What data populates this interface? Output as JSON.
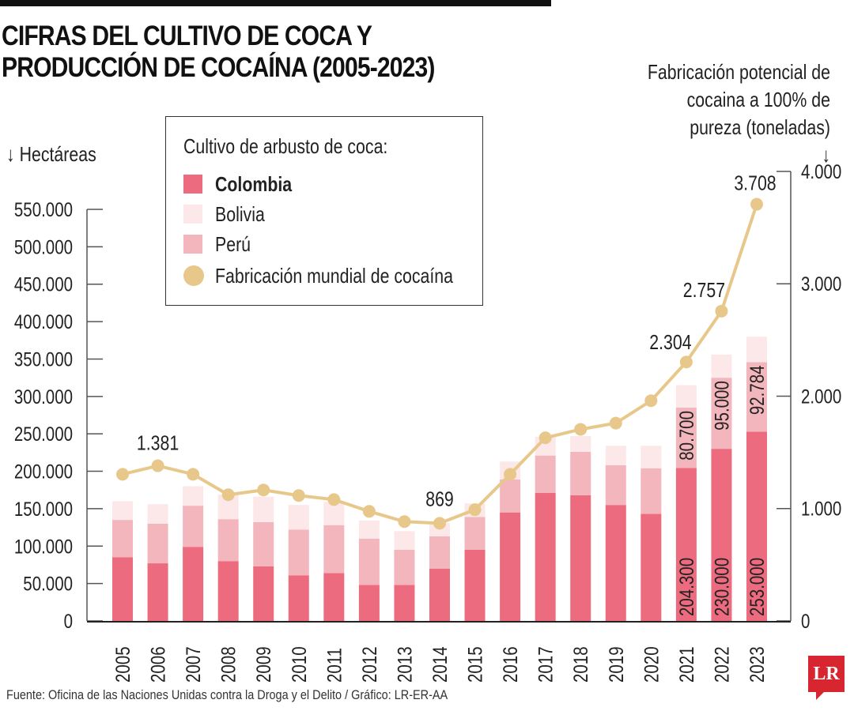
{
  "title_line1": "CIFRAS DEL CULTIVO DE COCA Y",
  "title_line2": "PRODUCCIÓN DE COCAÍNA (2005-2023)",
  "source": "Fuente: Oficina de las Naciones Unidas contra la Droga y el Delito / Gráfico: LR-ER-AA",
  "logo": "LR",
  "colors": {
    "colombia": "#ec6b7e",
    "bolivia": "#fce7e9",
    "peru": "#f2b6bc",
    "cocaine": "#e8c88a"
  },
  "chart_data": {
    "type": "bar",
    "stacked": true,
    "ylabel": "Hectáreas",
    "y2label": "Fabricación potencial de cocaina a 100% de pureza (toneladas)",
    "ylim": [
      0,
      550000
    ],
    "y2lim": [
      0,
      4000
    ],
    "yticks": [
      "0",
      "50.000",
      "100.000",
      "150.000",
      "200.000",
      "250.000",
      "300.000",
      "350.000",
      "400.000",
      "450.000",
      "500.000",
      "550.000"
    ],
    "y2ticks": [
      "0",
      "1.000",
      "2.000",
      "3.000",
      "4.000"
    ],
    "legend_title": "Cultivo de arbusto de coca:",
    "legend_placement": "top-left",
    "categories": [
      "2005",
      "2006",
      "2007",
      "2008",
      "2009",
      "2010",
      "2011",
      "2012",
      "2013",
      "2014",
      "2015",
      "2016",
      "2017",
      "2018",
      "2019",
      "2020",
      "2021",
      "2022",
      "2023"
    ],
    "series": [
      {
        "name": "Colombia",
        "axis": "left",
        "values": [
          85000,
          77000,
          99000,
          80000,
          73000,
          61000,
          64000,
          48000,
          48000,
          70000,
          95000,
          145000,
          171000,
          168000,
          155000,
          143000,
          204300,
          230000,
          253000
        ]
      },
      {
        "name": "Perú",
        "axis": "left",
        "values": [
          50000,
          53000,
          55000,
          56000,
          59000,
          61000,
          64000,
          62000,
          47000,
          43000,
          44000,
          44000,
          50000,
          58000,
          53000,
          61000,
          80700,
          95000,
          92784
        ]
      },
      {
        "name": "Bolivia",
        "axis": "left",
        "values": [
          25000,
          26000,
          26000,
          33000,
          34000,
          33000,
          31000,
          24000,
          25000,
          18000,
          18000,
          24000,
          25000,
          21000,
          26000,
          30000,
          30000,
          31000,
          34000
        ]
      },
      {
        "name": "Fabricación mundial de cocaína",
        "type": "line",
        "axis": "right",
        "values": [
          1305,
          1381,
          1305,
          1123,
          1165,
          1116,
          1080,
          975,
          884,
          869,
          990,
          1305,
          1630,
          1705,
          1760,
          1960,
          2304,
          2757,
          3708
        ]
      }
    ],
    "data_labels": {
      "colombia": {
        "2021": "204.300",
        "2022": "230.000",
        "2023": "253.000"
      },
      "peru": {
        "2021": "80.700",
        "2022": "95.000",
        "2023": "92.784"
      },
      "cocaine": {
        "2006": "1.381",
        "2014": "869",
        "2021": "2.304",
        "2022": "2.757",
        "2023": "3.708"
      }
    }
  }
}
